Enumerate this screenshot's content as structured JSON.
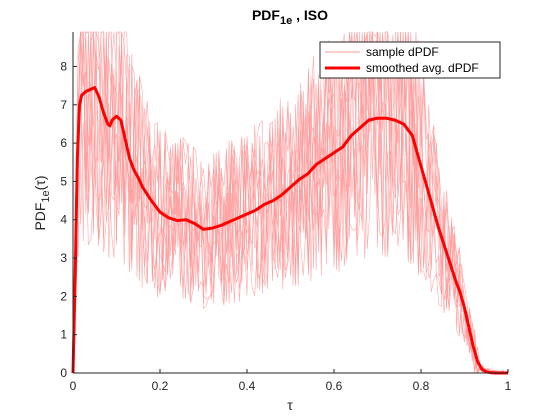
{
  "chart_data": {
    "type": "line",
    "title": {
      "main": "PDF",
      "sub": "1e",
      "suffix": " , ISO"
    },
    "xlabel": "τ",
    "ylabel": {
      "main": "PDF",
      "sub": "1e",
      "suffix": "(τ)"
    },
    "xlim": [
      0,
      1
    ],
    "ylim": [
      0,
      8.9
    ],
    "x_ticks": [
      0,
      0.2,
      0.4,
      0.6,
      0.8,
      1
    ],
    "x_tick_labels": [
      "0",
      "0.2",
      "0.4",
      "0.6",
      "0.8",
      "1"
    ],
    "y_ticks": [
      0,
      1,
      2,
      3,
      4,
      5,
      6,
      7,
      8
    ],
    "y_tick_labels": [
      "0",
      "1",
      "2",
      "3",
      "4",
      "5",
      "6",
      "7",
      "8"
    ],
    "grid": false,
    "legend_position": "top-right",
    "legend": [
      "sample dPDF",
      "smoothed avg. dPDF"
    ],
    "series": [
      {
        "name": "smoothed avg. dPDF",
        "color": "#ff0000",
        "x": [
          0,
          0.005,
          0.01,
          0.015,
          0.02,
          0.03,
          0.04,
          0.05,
          0.06,
          0.07,
          0.08,
          0.085,
          0.09,
          0.1,
          0.11,
          0.12,
          0.13,
          0.14,
          0.15,
          0.16,
          0.18,
          0.2,
          0.22,
          0.24,
          0.26,
          0.28,
          0.3,
          0.32,
          0.34,
          0.36,
          0.38,
          0.4,
          0.42,
          0.44,
          0.46,
          0.48,
          0.5,
          0.52,
          0.54,
          0.56,
          0.58,
          0.6,
          0.62,
          0.64,
          0.66,
          0.68,
          0.7,
          0.72,
          0.74,
          0.76,
          0.78,
          0.79,
          0.8,
          0.82,
          0.84,
          0.86,
          0.87,
          0.88,
          0.89,
          0.9,
          0.91,
          0.92,
          0.93,
          0.94,
          0.95,
          0.96,
          0.97,
          0.98,
          1.0
        ],
        "y": [
          0,
          2.5,
          5.6,
          7.0,
          7.25,
          7.35,
          7.4,
          7.45,
          7.2,
          6.8,
          6.5,
          6.45,
          6.6,
          6.7,
          6.6,
          6.1,
          5.6,
          5.3,
          5.1,
          4.85,
          4.5,
          4.2,
          4.05,
          3.98,
          4.0,
          3.9,
          3.75,
          3.78,
          3.85,
          3.95,
          4.05,
          4.15,
          4.25,
          4.4,
          4.5,
          4.65,
          4.85,
          5.05,
          5.2,
          5.45,
          5.6,
          5.75,
          5.9,
          6.2,
          6.4,
          6.6,
          6.65,
          6.65,
          6.6,
          6.5,
          6.2,
          5.8,
          5.4,
          4.6,
          3.8,
          3.1,
          2.75,
          2.4,
          2.1,
          1.7,
          1.2,
          0.7,
          0.3,
          0.1,
          0.03,
          0.01,
          0,
          0,
          0
        ]
      }
    ]
  },
  "colors": {
    "sample": "#ff9999",
    "smoothed": "#ff0000",
    "axes": "#262626"
  }
}
